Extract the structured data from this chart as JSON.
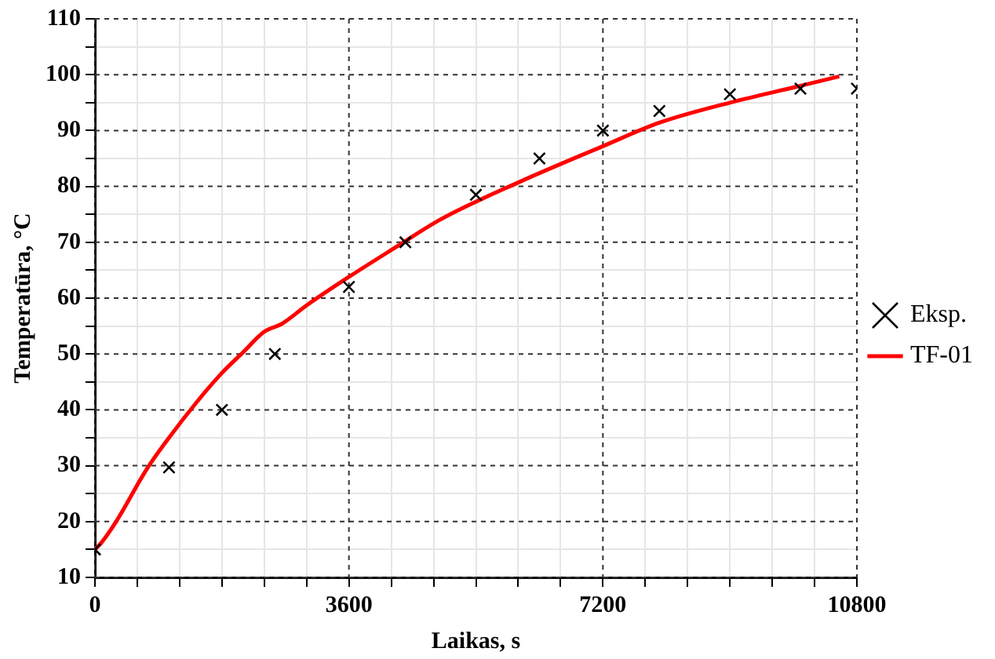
{
  "chart_data": {
    "type": "scatter",
    "xlabel": "Laikas, s",
    "ylabel": "Temperatūra, °C",
    "xlim": [
      0,
      10800
    ],
    "xticks": [
      0,
      {
        "value": 600,
        "label": null
      },
      {
        "value": 1200,
        "label": null
      },
      {
        "value": 1800,
        "label": null
      },
      {
        "value": 2400,
        "label": null
      },
      {
        "value": 3000,
        "label": null
      },
      3600,
      {
        "value": 4200,
        "label": null
      },
      {
        "value": 4800,
        "label": null
      },
      {
        "value": 5400,
        "label": null
      },
      {
        "value": 6000,
        "label": null
      },
      {
        "value": 6600,
        "label": null
      },
      7200,
      {
        "value": 7800,
        "label": null
      },
      {
        "value": 8400,
        "label": null
      },
      {
        "value": 9000,
        "label": null
      },
      {
        "value": 9600,
        "label": null
      },
      {
        "value": 10200,
        "label": null
      },
      10800
    ],
    "ylim": [
      10,
      110
    ],
    "yticks": [
      10,
      {
        "value": 15,
        "label": null
      },
      20,
      {
        "value": 25,
        "label": null
      },
      30,
      {
        "value": 35,
        "label": null
      },
      40,
      {
        "value": 45,
        "label": null
      },
      50,
      {
        "value": 55,
        "label": null
      },
      60,
      {
        "value": 65,
        "label": null
      },
      70,
      {
        "value": 75,
        "label": null
      },
      80,
      {
        "value": 85,
        "label": null
      },
      90,
      {
        "value": 95,
        "label": null
      },
      100,
      {
        "value": 105,
        "label": null
      },
      110
    ],
    "grid": true,
    "legend": "right",
    "marker": "cross",
    "series": [
      {
        "name": "Eksp.",
        "color": "#000000",
        "x": [
          0,
          1050,
          1800,
          2550,
          3600,
          4400,
          5400,
          6300,
          7200,
          8000,
          9000,
          10000,
          10800
        ],
        "values": [
          15,
          29.7,
          40,
          50,
          62,
          70,
          78.5,
          85,
          90,
          93.5,
          96.5,
          97.5,
          97.5
        ]
      },
      {
        "name": "TF-01",
        "type": "line",
        "color": "#ff0000",
        "marker": "none",
        "x": [
          0,
          90,
          300,
          730,
          1020,
          1450,
          1800,
          2100,
          2400,
          2650,
          3000,
          3600,
          4250,
          4900,
          6000,
          7200,
          8000,
          9000,
          10000,
          10550
        ],
        "values": [
          15,
          16.2,
          20,
          29.3,
          34.5,
          41.5,
          46.6,
          50.3,
          54,
          55.4,
          58.7,
          63.8,
          69,
          74.1,
          80.7,
          87.2,
          91.4,
          95,
          98,
          99.7
        ]
      }
    ]
  }
}
